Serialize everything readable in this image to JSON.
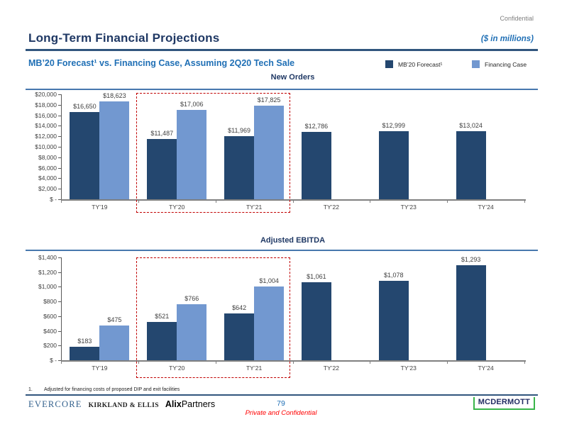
{
  "page": {
    "confidential": "Confidential",
    "title": "Long-Term Financial Projections",
    "units_note": "($ in millions)",
    "subtitle": "MB’20 Forecast¹ vs. Financing Case, Assuming 2Q20 Tech Sale"
  },
  "legend": {
    "items": [
      {
        "label": "MB’20 Forecast¹",
        "color": "#24476F"
      },
      {
        "label": "Financing Case",
        "color": "#7298D0"
      }
    ]
  },
  "colors": {
    "navy_title": "#1F3864",
    "bright_blue": "#1F6FB5",
    "rule_navy": "#31567E",
    "chart_title_rule": "#4878AE",
    "forecast_bar": "#24476F",
    "financing_bar": "#7298D0",
    "highlight_red": "#C00000",
    "axis_gray": "#808080",
    "axis_dark": "#595959",
    "label_gray": "#404040"
  },
  "chart_data": [
    {
      "type": "bar",
      "title": "New Orders",
      "categories": [
        "TY’19",
        "TY’20",
        "TY’21",
        "TY’22",
        "TY’23",
        "TY’24"
      ],
      "series": [
        {
          "name": "MB’20 Forecast¹",
          "color_key": "forecast_bar",
          "values": [
            16650,
            11487,
            11969,
            12786,
            12999,
            13024
          ]
        },
        {
          "name": "Financing Case",
          "color_key": "financing_bar",
          "values": [
            18623,
            17006,
            17825,
            null,
            null,
            null
          ]
        }
      ],
      "xlabel": "",
      "ylabel": "",
      "ylim": [
        0,
        20000
      ],
      "ytick_step": 2000,
      "zero_tick_label": "$ -",
      "value_prefix": "$",
      "grid": false,
      "legend_position": "header-right",
      "highlight_from": "TY’20",
      "highlight_to": "TY’21"
    },
    {
      "type": "bar",
      "title": "Adjusted EBITDA",
      "categories": [
        "TY’19",
        "TY’20",
        "TY’21",
        "TY’22",
        "TY’23",
        "TY’24"
      ],
      "series": [
        {
          "name": "MB’20 Forecast¹",
          "color_key": "forecast_bar",
          "values": [
            183,
            521,
            642,
            1061,
            1078,
            1293
          ]
        },
        {
          "name": "Financing Case",
          "color_key": "financing_bar",
          "values": [
            475,
            766,
            1004,
            null,
            null,
            null
          ]
        }
      ],
      "xlabel": "",
      "ylabel": "",
      "ylim": [
        0,
        1400
      ],
      "ytick_step": 200,
      "zero_tick_label": "$ -",
      "value_prefix": "$",
      "grid": false,
      "legend_position": "header-right",
      "highlight_from": "TY’20",
      "highlight_to": "TY’21"
    }
  ],
  "footnote": {
    "number": "1.",
    "text": "Adjusted for financing costs of proposed DIP and exit facilities"
  },
  "footer": {
    "logo_evercore": "EVERCORE",
    "logo_kirkland": "KIRKLAND & ELLIS",
    "logo_alix_bold": "Alix",
    "logo_alix_regular": "Partners",
    "page_number": "79",
    "classification": "Private and Confidential",
    "logo_mcdermott": "MCDERMOTT"
  }
}
